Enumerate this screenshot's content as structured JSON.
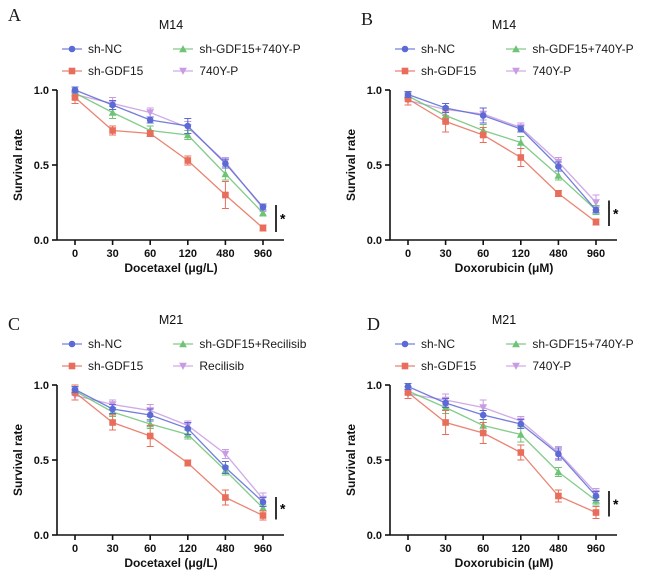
{
  "figure": {
    "background": "#ffffff",
    "axis_color": "#111111",
    "significance_label": "*"
  },
  "chart_data": [
    {
      "type": "line",
      "letter": "A",
      "title": "M14",
      "xlabel": "Docetaxel (μg/L)",
      "ylabel": "Survival rate",
      "categories": [
        "0",
        "30",
        "60",
        "120",
        "480",
        "960"
      ],
      "yticks": [
        "0.0",
        "0.5",
        "1.0"
      ],
      "ylim": [
        0,
        1
      ],
      "legend_position": "top",
      "significance": "*",
      "series": [
        {
          "name": "sh-NC",
          "marker": "circle",
          "color": "#5b6ad5",
          "values": [
            1.0,
            0.9,
            0.8,
            0.76,
            0.51,
            0.22
          ],
          "errors": [
            0.02,
            0.03,
            0.02,
            0.05,
            0.03,
            0.02
          ]
        },
        {
          "name": "sh-GDF15",
          "marker": "square",
          "color": "#e86d5b",
          "values": [
            0.95,
            0.73,
            0.71,
            0.53,
            0.3,
            0.08
          ],
          "errors": [
            0.04,
            0.03,
            0.02,
            0.03,
            0.09,
            0.02
          ]
        },
        {
          "name": "sh-GDF15+740Y-P",
          "marker": "triangle-up",
          "color": "#6fc377",
          "values": [
            0.98,
            0.85,
            0.73,
            0.7,
            0.44,
            0.18
          ],
          "errors": [
            0.02,
            0.04,
            0.03,
            0.03,
            0.04,
            0.02
          ]
        },
        {
          "name": "740Y-P",
          "marker": "triangle-down",
          "color": "#c89be2",
          "values": [
            0.97,
            0.91,
            0.85,
            0.75,
            0.52,
            0.21
          ],
          "errors": [
            0.03,
            0.04,
            0.03,
            0.04,
            0.03,
            0.02
          ]
        }
      ]
    },
    {
      "type": "line",
      "letter": "B",
      "title": "M14",
      "xlabel": "Doxorubicin (μM)",
      "ylabel": "Survival rate",
      "categories": [
        "0",
        "30",
        "60",
        "120",
        "480",
        "960"
      ],
      "yticks": [
        "0.0",
        "0.5",
        "1.0"
      ],
      "ylim": [
        0,
        1
      ],
      "legend_position": "top",
      "significance": "*",
      "series": [
        {
          "name": "sh-NC",
          "marker": "circle",
          "color": "#5b6ad5",
          "values": [
            0.97,
            0.88,
            0.83,
            0.74,
            0.49,
            0.2
          ],
          "errors": [
            0.02,
            0.03,
            0.05,
            0.02,
            0.03,
            0.02
          ]
        },
        {
          "name": "sh-GDF15",
          "marker": "square",
          "color": "#e86d5b",
          "values": [
            0.94,
            0.79,
            0.7,
            0.55,
            0.31,
            0.12
          ],
          "errors": [
            0.04,
            0.07,
            0.05,
            0.06,
            0.02,
            0.02
          ]
        },
        {
          "name": "sh-GDF15+740Y-P",
          "marker": "triangle-up",
          "color": "#6fc377",
          "values": [
            0.96,
            0.83,
            0.73,
            0.65,
            0.43,
            0.2
          ],
          "errors": [
            0.02,
            0.04,
            0.04,
            0.04,
            0.03,
            0.03
          ]
        },
        {
          "name": "740Y-P",
          "marker": "triangle-down",
          "color": "#c89be2",
          "values": [
            0.93,
            0.87,
            0.84,
            0.75,
            0.52,
            0.25
          ],
          "errors": [
            0.03,
            0.04,
            0.04,
            0.03,
            0.03,
            0.05
          ]
        }
      ]
    },
    {
      "type": "line",
      "letter": "C",
      "title": "M21",
      "xlabel": "Docetaxel (μg/L)",
      "ylabel": "Survival rate",
      "categories": [
        "0",
        "30",
        "60",
        "120",
        "480",
        "960"
      ],
      "yticks": [
        "0.0",
        "0.5",
        "1.0"
      ],
      "ylim": [
        0,
        1
      ],
      "legend_position": "top",
      "significance": "*",
      "series": [
        {
          "name": "sh-NC",
          "marker": "circle",
          "color": "#5b6ad5",
          "values": [
            0.97,
            0.84,
            0.8,
            0.71,
            0.45,
            0.22
          ],
          "errors": [
            0.02,
            0.03,
            0.04,
            0.04,
            0.04,
            0.03
          ]
        },
        {
          "name": "sh-GDF15",
          "marker": "square",
          "color": "#e86d5b",
          "values": [
            0.95,
            0.75,
            0.66,
            0.48,
            0.25,
            0.13
          ],
          "errors": [
            0.05,
            0.05,
            0.07,
            0.02,
            0.05,
            0.03
          ]
        },
        {
          "name": "sh-GDF15+Recilisib",
          "marker": "triangle-up",
          "color": "#6fc377",
          "values": [
            0.96,
            0.82,
            0.74,
            0.67,
            0.43,
            0.18
          ],
          "errors": [
            0.02,
            0.03,
            0.03,
            0.03,
            0.03,
            0.02
          ]
        },
        {
          "name": "Recilisib",
          "marker": "triangle-down",
          "color": "#c89be2",
          "values": [
            0.93,
            0.87,
            0.83,
            0.73,
            0.54,
            0.24
          ],
          "errors": [
            0.03,
            0.03,
            0.04,
            0.03,
            0.03,
            0.04
          ]
        }
      ]
    },
    {
      "type": "line",
      "letter": "D",
      "title": "M21",
      "xlabel": "Doxorubicin (μM)",
      "ylabel": "Survival rate",
      "categories": [
        "0",
        "30",
        "60",
        "120",
        "480",
        "960"
      ],
      "yticks": [
        "0.0",
        "0.5",
        "1.0"
      ],
      "ylim": [
        0,
        1
      ],
      "legend_position": "top",
      "significance": "*",
      "series": [
        {
          "name": "sh-NC",
          "marker": "circle",
          "color": "#5b6ad5",
          "values": [
            0.99,
            0.88,
            0.8,
            0.74,
            0.54,
            0.26
          ],
          "errors": [
            0.02,
            0.03,
            0.03,
            0.03,
            0.04,
            0.03
          ]
        },
        {
          "name": "sh-GDF15",
          "marker": "square",
          "color": "#e86d5b",
          "values": [
            0.95,
            0.75,
            0.68,
            0.55,
            0.26,
            0.15
          ],
          "errors": [
            0.04,
            0.08,
            0.07,
            0.05,
            0.04,
            0.04
          ]
        },
        {
          "name": "sh-GDF15+740Y-P",
          "marker": "triangle-up",
          "color": "#6fc377",
          "values": [
            0.96,
            0.85,
            0.73,
            0.67,
            0.42,
            0.23
          ],
          "errors": [
            0.02,
            0.04,
            0.04,
            0.05,
            0.03,
            0.03
          ]
        },
        {
          "name": "740Y-P",
          "marker": "triangle-down",
          "color": "#c89be2",
          "values": [
            0.94,
            0.9,
            0.85,
            0.76,
            0.55,
            0.28
          ],
          "errors": [
            0.03,
            0.04,
            0.05,
            0.03,
            0.04,
            0.03
          ]
        }
      ]
    }
  ]
}
